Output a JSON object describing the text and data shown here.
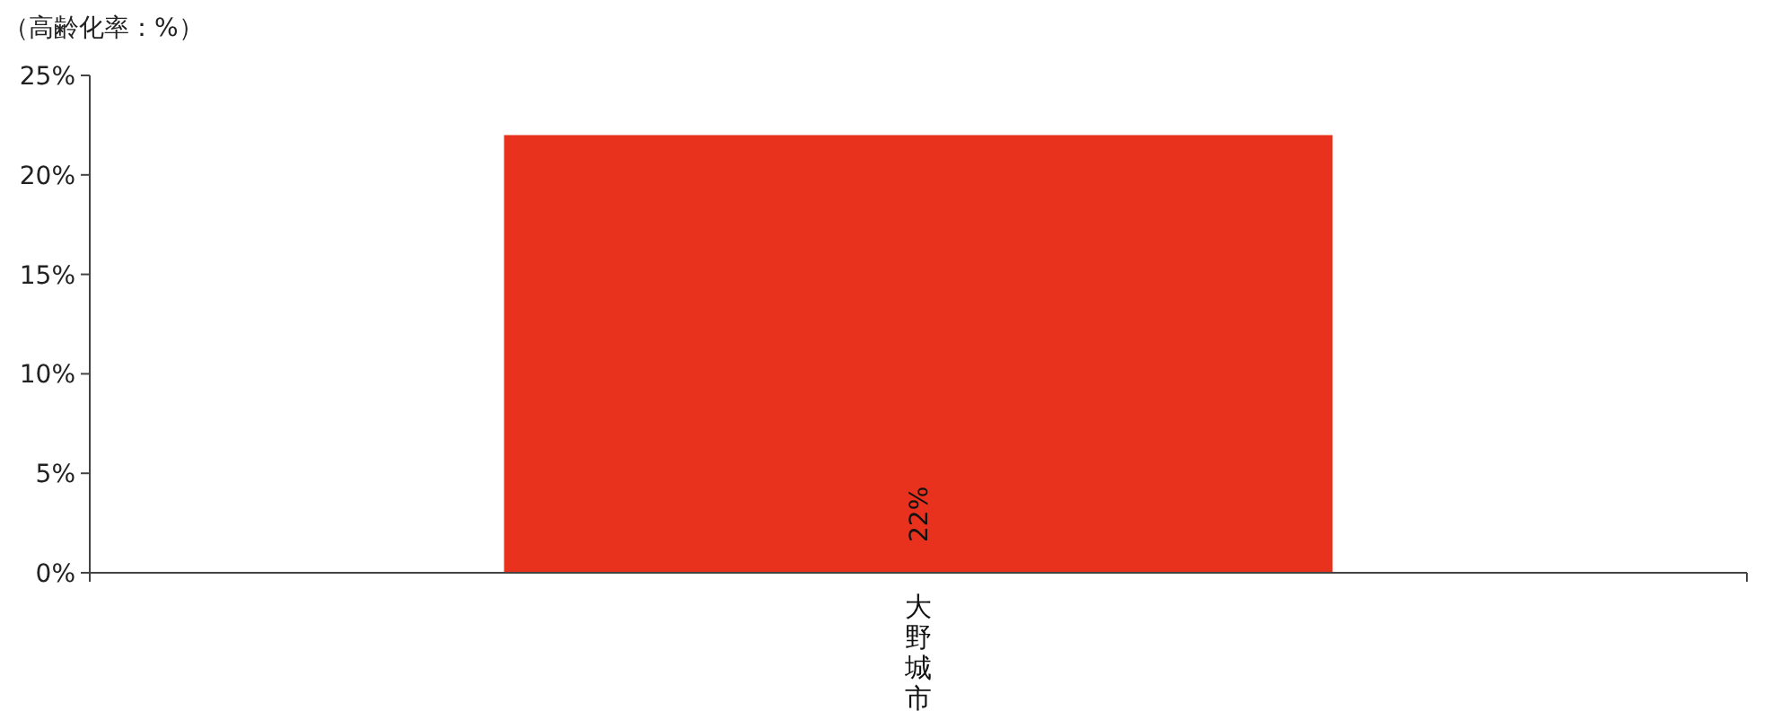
{
  "chart_data": {
    "type": "bar",
    "ylabel": "（高齢化率：%）",
    "categories": [
      "大野城市"
    ],
    "values": [
      22
    ],
    "color": "#e8321e",
    "data_labels": true,
    "value_labels": [
      "22%"
    ],
    "ylim": [
      0,
      25
    ],
    "yticks": [
      {
        "value": 0,
        "label": "0%"
      },
      {
        "value": 5,
        "label": "5%"
      },
      {
        "value": 10,
        "label": "10%"
      },
      {
        "value": 15,
        "label": "15%"
      },
      {
        "value": 20,
        "label": "20%"
      },
      {
        "value": 25,
        "label": "25%"
      }
    ],
    "grid": false
  }
}
